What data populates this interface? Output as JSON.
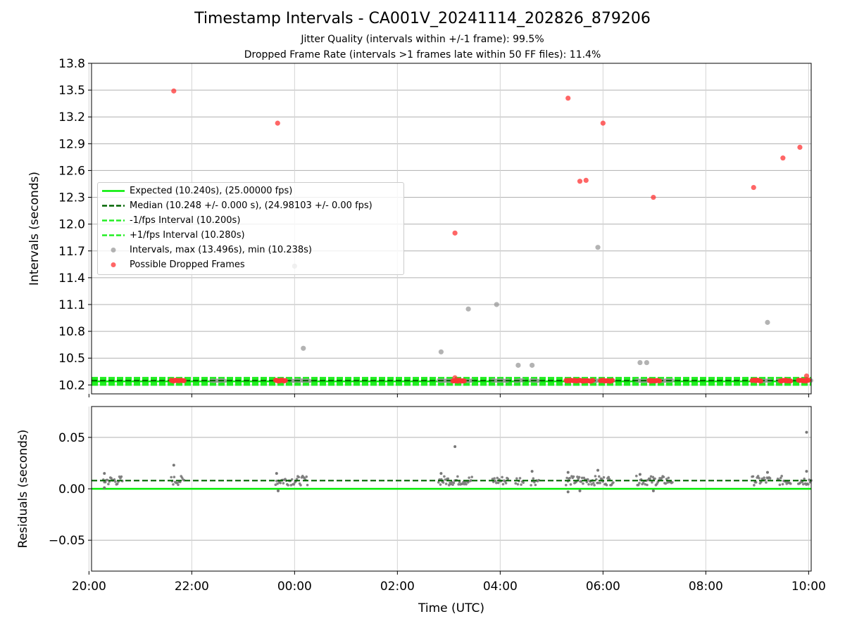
{
  "title": "Timestamp Intervals - CA001V_20241114_202826_879206",
  "subtitle_1": "Jitter Quality (intervals within +/-1 frame): 99.5%",
  "subtitle_2": "Dropped Frame Rate (intervals >1 frames late within 50 FF files): 11.4%",
  "colors": {
    "expected": "#00ee00",
    "median": "#006400",
    "bounds": "#22ee22",
    "intervals": "#999999",
    "dropped": "#ff3333",
    "residual_points": "#777777",
    "grid": "#b0b0b0"
  },
  "chart_data": [
    {
      "type": "scatter",
      "panel": "top",
      "ylabel": "Intervals (seconds)",
      "xlabel": "",
      "ylim": [
        10.1,
        13.8
      ],
      "yticks": [
        "10.2",
        "10.5",
        "10.8",
        "11.1",
        "11.4",
        "11.7",
        "12.0",
        "12.3",
        "12.6",
        "12.9",
        "13.2",
        "13.5",
        "13.8"
      ],
      "xticks": [
        "20:00",
        "22:00",
        "00:00",
        "02:00",
        "04:00",
        "06:00",
        "08:00",
        "10:00"
      ],
      "grid": true,
      "legend_position": "center-left",
      "reference_lines": {
        "expected": 10.24,
        "median": 10.248,
        "minus_1fps": 10.2,
        "plus_1fps": 10.28
      },
      "legend": [
        {
          "label": "Expected (10.240s), (25.00000 fps)",
          "style": "solid",
          "color": "#00ee00"
        },
        {
          "label": "Median (10.248 +/- 0.000 s), (24.98103 +/- 0.00 fps)",
          "style": "dashed",
          "color": "#006400"
        },
        {
          "label": "-1/fps Interval (10.200s)",
          "style": "dashed",
          "color": "#22ee22"
        },
        {
          "label": "+1/fps Interval (10.280s)",
          "style": "dashed",
          "color": "#22ee22"
        },
        {
          "label": "Intervals, max (13.496s), min (10.238s)",
          "style": "marker",
          "color": "#999999"
        },
        {
          "label": "Possible Dropped Frames",
          "style": "marker",
          "color": "#ff3333"
        }
      ],
      "intervals_outliers": [
        {
          "x": 0.0,
          "y": 11.53
        },
        {
          "x": 0.17,
          "y": 10.61
        },
        {
          "x": 2.85,
          "y": 10.57
        },
        {
          "x": 3.38,
          "y": 11.05
        },
        {
          "x": 3.93,
          "y": 11.1
        },
        {
          "x": 4.35,
          "y": 10.42
        },
        {
          "x": 4.62,
          "y": 10.42
        },
        {
          "x": 5.9,
          "y": 11.74
        },
        {
          "x": 6.72,
          "y": 10.45
        },
        {
          "x": 6.85,
          "y": 10.45
        },
        {
          "x": 9.2,
          "y": 10.9
        }
      ],
      "interval_clusters": [
        [
          -1.62,
          -1.35
        ],
        [
          -0.35,
          -0.15
        ],
        [
          -0.05,
          0.3
        ],
        [
          2.8,
          3.45
        ],
        [
          3.85,
          4.15
        ],
        [
          4.3,
          4.45
        ],
        [
          4.6,
          4.75
        ],
        [
          5.3,
          5.9
        ],
        [
          5.95,
          6.2
        ],
        [
          6.65,
          7.35
        ],
        [
          8.9,
          9.25
        ],
        [
          9.4,
          9.65
        ],
        [
          9.8,
          10.05
        ]
      ],
      "dropped_frames": [
        {
          "x": -2.35,
          "y": 13.49
        },
        {
          "x": -0.33,
          "y": 13.13
        },
        {
          "x": 3.12,
          "y": 11.9
        },
        {
          "x": 5.32,
          "y": 13.41
        },
        {
          "x": 5.55,
          "y": 12.48
        },
        {
          "x": 5.67,
          "y": 12.49
        },
        {
          "x": 6.0,
          "y": 13.13
        },
        {
          "x": 6.98,
          "y": 12.3
        },
        {
          "x": 8.93,
          "y": 12.41
        },
        {
          "x": 9.5,
          "y": 12.74
        },
        {
          "x": 9.83,
          "y": 12.86
        },
        {
          "x": 9.96,
          "y": 10.3
        },
        {
          "x": 3.12,
          "y": 10.28
        }
      ],
      "dropped_cluster_ranges": [
        [
          -2.4,
          -2.15
        ],
        [
          -0.37,
          -0.18
        ],
        [
          3.08,
          3.3
        ],
        [
          5.28,
          5.62
        ],
        [
          5.62,
          5.8
        ],
        [
          5.95,
          6.18
        ],
        [
          6.9,
          7.1
        ],
        [
          8.9,
          9.07
        ],
        [
          9.45,
          9.65
        ],
        [
          9.8,
          10.0
        ]
      ]
    },
    {
      "type": "scatter",
      "panel": "bottom",
      "ylabel": "Residuals (seconds)",
      "xlabel": "Time (UTC)",
      "ylim": [
        -0.08,
        0.08
      ],
      "yticks": [
        "−0.05",
        "0.00",
        "0.05"
      ],
      "xticks": [
        "20:00",
        "22:00",
        "00:00",
        "02:00",
        "04:00",
        "06:00",
        "08:00",
        "10:00"
      ],
      "grid": true,
      "reference_lines": {
        "zero": 0.0,
        "median_offset": 0.008
      },
      "residual_outliers": [
        {
          "x": -3.7,
          "y": 0.015
        },
        {
          "x": -3.7,
          "y": 0.001
        },
        {
          "x": -2.35,
          "y": 0.023
        },
        {
          "x": -0.35,
          "y": 0.015
        },
        {
          "x": -0.32,
          "y": -0.002
        },
        {
          "x": 3.12,
          "y": 0.041
        },
        {
          "x": 2.85,
          "y": 0.015
        },
        {
          "x": 4.62,
          "y": 0.017
        },
        {
          "x": 5.32,
          "y": 0.016
        },
        {
          "x": 5.32,
          "y": -0.003
        },
        {
          "x": 5.55,
          "y": -0.002
        },
        {
          "x": 5.9,
          "y": 0.018
        },
        {
          "x": 6.72,
          "y": 0.014
        },
        {
          "x": 6.98,
          "y": -0.002
        },
        {
          "x": 9.2,
          "y": 0.016
        },
        {
          "x": 9.96,
          "y": 0.055
        },
        {
          "x": 9.96,
          "y": 0.017
        }
      ],
      "residual_clusters": [
        [
          -3.72,
          -3.35
        ],
        [
          -2.4,
          -2.15
        ],
        [
          -0.37,
          0.25
        ],
        [
          2.8,
          3.45
        ],
        [
          3.85,
          4.15
        ],
        [
          4.3,
          4.45
        ],
        [
          4.6,
          4.75
        ],
        [
          5.28,
          6.2
        ],
        [
          6.65,
          7.35
        ],
        [
          8.9,
          9.25
        ],
        [
          9.4,
          9.65
        ],
        [
          9.8,
          10.05
        ]
      ]
    }
  ]
}
